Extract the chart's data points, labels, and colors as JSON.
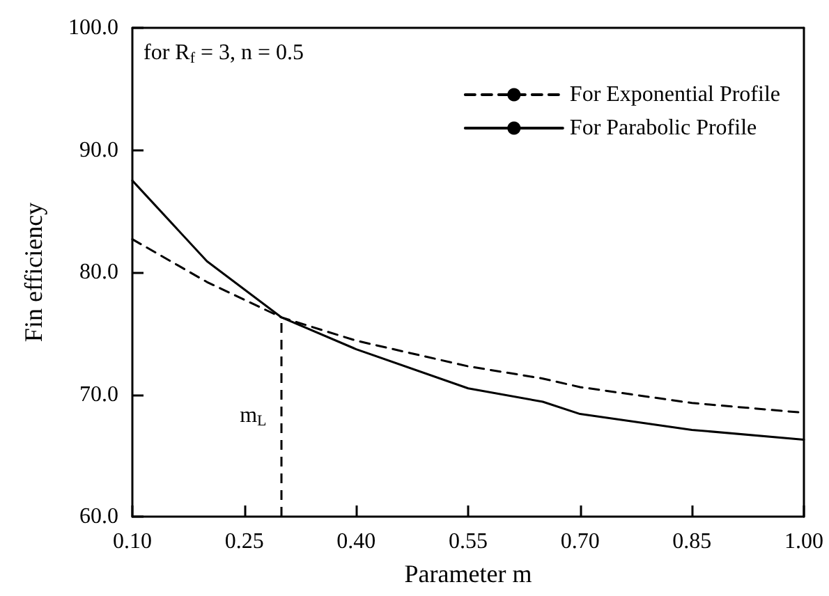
{
  "chart_data": {
    "type": "line",
    "xlabel": "Parameter m",
    "ylabel": "Fin efficiency",
    "annotations": [
      "for R$_{f}$ = 3, n = 0.5"
    ],
    "x": [
      0.1,
      0.2,
      0.3,
      0.4,
      0.55,
      0.65,
      0.7,
      0.85,
      1.0
    ],
    "series": [
      {
        "name": "For Exponential Profile",
        "color": "#000000",
        "line_style": "dashed",
        "values": [
          82.7,
          79.2,
          76.3,
          74.4,
          72.3,
          71.3,
          70.6,
          69.3,
          68.5
        ]
      },
      {
        "name": "For Parabolic Profile",
        "color": "#000000",
        "line_style": "solid",
        "values": [
          87.5,
          80.9,
          76.3,
          73.7,
          70.5,
          69.4,
          68.4,
          67.1,
          66.3
        ]
      }
    ],
    "ref_lines": [
      {
        "axis": "x",
        "value": 0.3,
        "label": "m$_{L}$",
        "line_style": "dashed",
        "color": "#000000"
      }
    ],
    "xlim": [
      0.1,
      1.0
    ],
    "xticks": [
      {
        "value": 0.1,
        "label": "0.10"
      },
      {
        "value": 0.25,
        "label": "0.25"
      },
      {
        "value": 0.4,
        "label": "0.40"
      },
      {
        "value": 0.55,
        "label": "0.55"
      },
      {
        "value": 0.7,
        "label": "0.70"
      },
      {
        "value": 0.85,
        "label": "0.85"
      },
      {
        "value": 1.0,
        "label": "1.00"
      }
    ],
    "ylim": [
      60,
      100
    ],
    "yticks": [
      {
        "value": 60,
        "label": "60.0"
      },
      {
        "value": 70,
        "label": "70.0"
      },
      {
        "value": 80,
        "label": "80.0"
      },
      {
        "value": 90,
        "label": "90.0"
      },
      {
        "value": 100,
        "label": "100.0"
      }
    ],
    "grid": false,
    "legend": "top right",
    "marker": "none"
  }
}
